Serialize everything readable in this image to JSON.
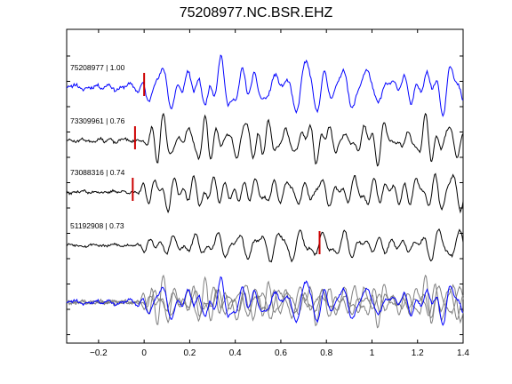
{
  "figure": {
    "title": "75208977.NC.BSR.EHZ"
  },
  "chart_data": {
    "type": "line",
    "title": "75208977.NC.BSR.EHZ",
    "xlim": [
      -0.34,
      1.4
    ],
    "x_ticks": [
      -0.2,
      0,
      0.2,
      0.4,
      0.6,
      0.8,
      1,
      1.2,
      1.4
    ],
    "x_tick_labels": [
      "−0.2",
      "0",
      "0.2",
      "0.4",
      "0.6",
      "0.8",
      "1",
      "1.2",
      "1.4"
    ],
    "grid": false,
    "y_ticks": "unlabeled",
    "series": [
      {
        "name": "75208977",
        "label": "75208977 | 1.00",
        "correlation": 1.0,
        "color": "#0000ff",
        "pick_time": 0.0,
        "pick_color": "#cc0000",
        "seed": 11,
        "amplitude": 1.0
      },
      {
        "name": "73309961",
        "label": "73309961 | 0.76",
        "correlation": 0.76,
        "color": "#000000",
        "pick_time": -0.04,
        "pick_color": "#cc0000",
        "seed": 23,
        "amplitude": 0.9
      },
      {
        "name": "73088316",
        "label": "73088316 | 0.74",
        "correlation": 0.74,
        "color": "#000000",
        "pick_time": -0.05,
        "pick_color": "#cc0000",
        "seed": 37,
        "amplitude": 0.9
      },
      {
        "name": "51192908",
        "label": "51192908 | 0.73",
        "correlation": 0.73,
        "color": "#000000",
        "pick_time": 0.77,
        "pick_color": "#cc0000",
        "seed": 53,
        "amplitude": 0.9
      }
    ],
    "stack": {
      "description": "overlay of all traces",
      "template_color": "#0000ff",
      "others_color": "#808080"
    }
  }
}
